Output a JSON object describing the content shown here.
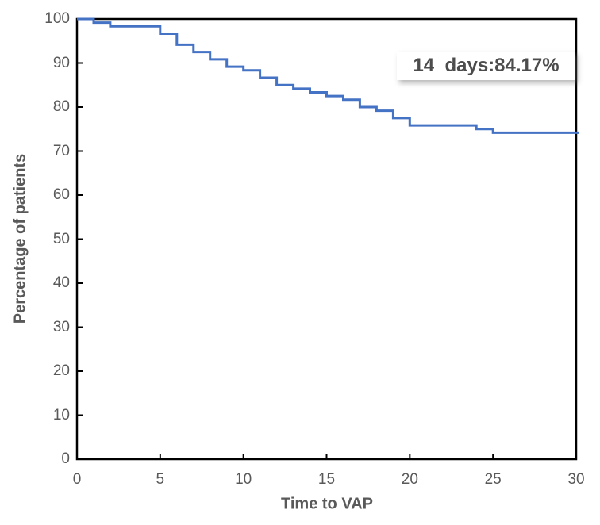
{
  "annotation": {
    "text": "14  days:84.17%"
  },
  "chart_data": {
    "type": "line",
    "subtype": "kaplan-meier-step",
    "title": "",
    "xlabel": "Time to VAP",
    "ylabel": "Percentage of patients",
    "xlim": [
      0,
      30
    ],
    "ylim": [
      0,
      100
    ],
    "x_ticks": [
      0,
      5,
      10,
      15,
      20,
      25,
      30
    ],
    "y_ticks": [
      0,
      10,
      20,
      30,
      40,
      50,
      60,
      70,
      80,
      90,
      100
    ],
    "grid": false,
    "legend_position": "none",
    "line_color": "#4472C4",
    "axis_color": "#000000",
    "tick_label_color": "#595959",
    "annotation_label": "14  days:84.17%",
    "series": [
      {
        "points": [
          [
            0,
            100
          ],
          [
            1,
            99.17
          ],
          [
            2,
            98.33
          ],
          [
            5,
            96.67
          ],
          [
            6,
            94.17
          ],
          [
            7,
            92.5
          ],
          [
            8,
            90.83
          ],
          [
            9,
            89.17
          ],
          [
            10,
            88.33
          ],
          [
            11,
            86.67
          ],
          [
            12,
            85.0
          ],
          [
            13,
            84.17
          ],
          [
            14,
            83.33
          ],
          [
            15,
            82.5
          ],
          [
            16,
            81.67
          ],
          [
            17,
            80.0
          ],
          [
            18,
            79.17
          ],
          [
            19,
            77.5
          ],
          [
            20,
            75.83
          ],
          [
            24,
            75.0
          ],
          [
            25,
            74.17
          ],
          [
            30,
            74.17
          ]
        ]
      }
    ]
  }
}
